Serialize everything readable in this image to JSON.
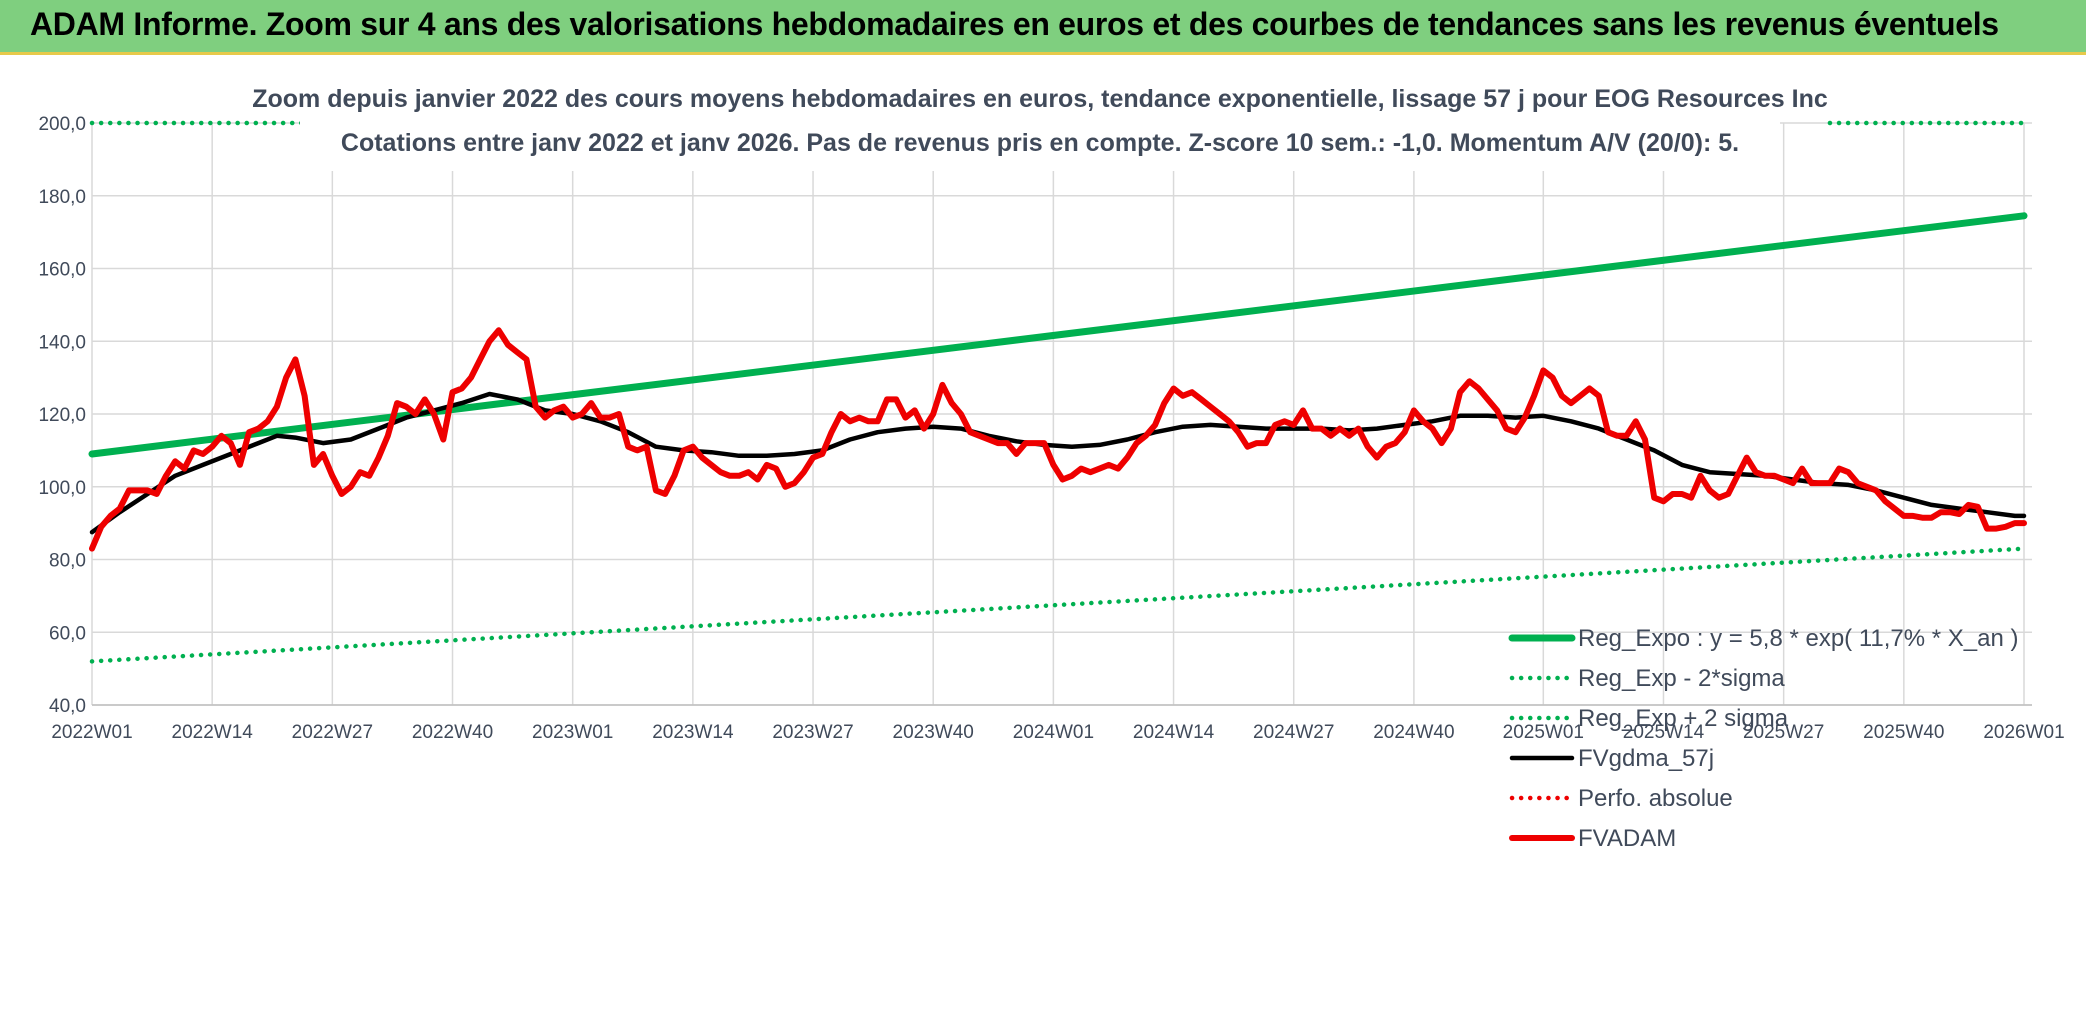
{
  "banner": {
    "title": "ADAM Informe. Zoom sur 4 ans des valorisations hebdomadaires en euros et des courbes de tendances sans les revenus éventuels"
  },
  "colors": {
    "banner_bg": "#7fcf7f",
    "green": "#00b050",
    "black": "#000000",
    "red": "#ee0000",
    "grid": "#d9d9d9",
    "text": "#404a5a"
  },
  "chart_data": {
    "type": "line",
    "title_line1": "Zoom depuis janvier 2022 des cours moyens hebdomadaires en euros, tendance exponentielle, lissage 57 j pour EOG Resources Inc",
    "title_line2": "Cotations entre janv 2022 et janv 2026. Pas de revenus pris en compte. Z-score 10 sem.: -1,0. Momentum A/V (20/0): 5.",
    "xlabel": "",
    "ylabel": "",
    "ylim": [
      40,
      200
    ],
    "yticks": [
      "40,0",
      "60,0",
      "80,0",
      "100,0",
      "120,0",
      "140,0",
      "160,0",
      "180,0",
      "200,0"
    ],
    "x_range_weeks": [
      0,
      209
    ],
    "x_ticks": [
      {
        "week": 0,
        "label": "2022W01"
      },
      {
        "week": 13,
        "label": "2022W14"
      },
      {
        "week": 26,
        "label": "2022W27"
      },
      {
        "week": 39,
        "label": "2022W40"
      },
      {
        "week": 52,
        "label": "2023W01"
      },
      {
        "week": 65,
        "label": "2023W14"
      },
      {
        "week": 78,
        "label": "2023W27"
      },
      {
        "week": 91,
        "label": "2023W40"
      },
      {
        "week": 104,
        "label": "2024W01"
      },
      {
        "week": 117,
        "label": "2024W14"
      },
      {
        "week": 130,
        "label": "2024W27"
      },
      {
        "week": 143,
        "label": "2024W40"
      },
      {
        "week": 157,
        "label": "2025W01"
      },
      {
        "week": 170,
        "label": "2025W14"
      },
      {
        "week": 183,
        "label": "2025W27"
      },
      {
        "week": 196,
        "label": "2025W40"
      },
      {
        "week": 209,
        "label": "2026W01"
      }
    ],
    "grid": true,
    "legend_position": "bottom-right",
    "series": [
      {
        "name": "Reg_Expo : y = 5,8 * exp( 11,7% *  X_an )",
        "style": "solid-thick",
        "color": "#00b050",
        "points": [
          [
            0,
            109.0
          ],
          [
            209,
            174.5
          ]
        ]
      },
      {
        "name": "Reg_Exp - 2*sigma",
        "style": "dotted",
        "color": "#00b050",
        "points": [
          [
            0,
            52.0
          ],
          [
            209,
            83.0
          ]
        ]
      },
      {
        "name": "Reg_Exp + 2 sigma",
        "style": "dotted",
        "color": "#00b050",
        "points": [
          [
            0,
            200.0
          ],
          [
            25,
            200.0
          ]
        ],
        "points_right": [
          [
            188,
            200.0
          ],
          [
            209,
            200.0
          ]
        ]
      },
      {
        "name": "FVgdma_57j",
        "style": "solid",
        "color": "#000000",
        "points": [
          [
            0,
            87.5
          ],
          [
            3,
            93
          ],
          [
            6,
            98
          ],
          [
            9,
            103
          ],
          [
            12,
            106
          ],
          [
            15,
            109
          ],
          [
            18,
            112
          ],
          [
            20,
            114
          ],
          [
            22,
            113.5
          ],
          [
            25,
            112
          ],
          [
            28,
            113
          ],
          [
            31,
            116
          ],
          [
            34,
            119
          ],
          [
            37,
            121
          ],
          [
            40,
            123
          ],
          [
            43,
            125.5
          ],
          [
            46,
            124
          ],
          [
            49,
            121
          ],
          [
            52,
            120
          ],
          [
            55,
            118
          ],
          [
            58,
            115
          ],
          [
            61,
            111
          ],
          [
            64,
            110
          ],
          [
            67,
            109.5
          ],
          [
            70,
            108.5
          ],
          [
            73,
            108.5
          ],
          [
            76,
            109
          ],
          [
            79,
            110
          ],
          [
            82,
            113
          ],
          [
            85,
            115
          ],
          [
            88,
            116
          ],
          [
            91,
            116.5
          ],
          [
            94,
            116
          ],
          [
            97,
            114
          ],
          [
            100,
            112.5
          ],
          [
            103,
            111.5
          ],
          [
            106,
            111
          ],
          [
            109,
            111.5
          ],
          [
            112,
            113
          ],
          [
            115,
            115
          ],
          [
            118,
            116.5
          ],
          [
            121,
            117
          ],
          [
            124,
            116.5
          ],
          [
            127,
            116
          ],
          [
            130,
            116
          ],
          [
            133,
            116
          ],
          [
            136,
            115.5
          ],
          [
            139,
            116
          ],
          [
            142,
            117
          ],
          [
            145,
            118
          ],
          [
            148,
            119.5
          ],
          [
            151,
            119.5
          ],
          [
            154,
            119
          ],
          [
            157,
            119.5
          ],
          [
            160,
            118
          ],
          [
            163,
            116
          ],
          [
            166,
            113
          ],
          [
            169,
            110
          ],
          [
            172,
            106
          ],
          [
            175,
            104
          ],
          [
            178,
            103.5
          ],
          [
            181,
            103
          ],
          [
            184,
            102
          ],
          [
            187,
            101
          ],
          [
            190,
            100.5
          ],
          [
            193,
            99
          ],
          [
            196,
            97
          ],
          [
            199,
            95
          ],
          [
            202,
            94
          ],
          [
            205,
            93
          ],
          [
            208,
            92
          ],
          [
            209,
            92
          ]
        ]
      },
      {
        "name": "Perfo. absolue",
        "style": "dotted",
        "color": "#ee0000",
        "points": []
      },
      {
        "name": "FVADAM",
        "style": "solid-thick",
        "color": "#ee0000",
        "points": [
          [
            0,
            83
          ],
          [
            1,
            89
          ],
          [
            2,
            92
          ],
          [
            3,
            94
          ],
          [
            4,
            99
          ],
          [
            5,
            99
          ],
          [
            6,
            99
          ],
          [
            7,
            98
          ],
          [
            8,
            103
          ],
          [
            9,
            107
          ],
          [
            10,
            105
          ],
          [
            11,
            110
          ],
          [
            12,
            109
          ],
          [
            13,
            111
          ],
          [
            14,
            114
          ],
          [
            15,
            112
          ],
          [
            16,
            106
          ],
          [
            17,
            115
          ],
          [
            18,
            116
          ],
          [
            19,
            118
          ],
          [
            20,
            122
          ],
          [
            21,
            130
          ],
          [
            22,
            135
          ],
          [
            23,
            125
          ],
          [
            24,
            106
          ],
          [
            25,
            109
          ],
          [
            26,
            103
          ],
          [
            27,
            98
          ],
          [
            28,
            100
          ],
          [
            29,
            104
          ],
          [
            30,
            103
          ],
          [
            31,
            108
          ],
          [
            32,
            114
          ],
          [
            33,
            123
          ],
          [
            34,
            122
          ],
          [
            35,
            120
          ],
          [
            36,
            124
          ],
          [
            37,
            120
          ],
          [
            38,
            113
          ],
          [
            39,
            126
          ],
          [
            40,
            127
          ],
          [
            41,
            130
          ],
          [
            42,
            135
          ],
          [
            43,
            140
          ],
          [
            44,
            143
          ],
          [
            45,
            139
          ],
          [
            46,
            137
          ],
          [
            47,
            135
          ],
          [
            48,
            122
          ],
          [
            49,
            119
          ],
          [
            50,
            121
          ],
          [
            51,
            122
          ],
          [
            52,
            119
          ],
          [
            53,
            120
          ],
          [
            54,
            123
          ],
          [
            55,
            119
          ],
          [
            56,
            119
          ],
          [
            57,
            120
          ],
          [
            58,
            111
          ],
          [
            59,
            110
          ],
          [
            60,
            111
          ],
          [
            61,
            99
          ],
          [
            62,
            98
          ],
          [
            63,
            103
          ],
          [
            64,
            110
          ],
          [
            65,
            111
          ],
          [
            66,
            108
          ],
          [
            67,
            106
          ],
          [
            68,
            104
          ],
          [
            69,
            103
          ],
          [
            70,
            103
          ],
          [
            71,
            104
          ],
          [
            72,
            102
          ],
          [
            73,
            106
          ],
          [
            74,
            105
          ],
          [
            75,
            100
          ],
          [
            76,
            101
          ],
          [
            77,
            104
          ],
          [
            78,
            108
          ],
          [
            79,
            109
          ],
          [
            80,
            115
          ],
          [
            81,
            120
          ],
          [
            82,
            118
          ],
          [
            83,
            119
          ],
          [
            84,
            118
          ],
          [
            85,
            118
          ],
          [
            86,
            124
          ],
          [
            87,
            124
          ],
          [
            88,
            119
          ],
          [
            89,
            121
          ],
          [
            90,
            116
          ],
          [
            91,
            120
          ],
          [
            92,
            128
          ],
          [
            93,
            123
          ],
          [
            94,
            120
          ],
          [
            95,
            115
          ],
          [
            96,
            114
          ],
          [
            97,
            113
          ],
          [
            98,
            112
          ],
          [
            99,
            112
          ],
          [
            100,
            109
          ],
          [
            101,
            112
          ],
          [
            102,
            112
          ],
          [
            103,
            112
          ],
          [
            104,
            106
          ],
          [
            105,
            102
          ],
          [
            106,
            103
          ],
          [
            107,
            105
          ],
          [
            108,
            104
          ],
          [
            109,
            105
          ],
          [
            110,
            106
          ],
          [
            111,
            105
          ],
          [
            112,
            108
          ],
          [
            113,
            112
          ],
          [
            114,
            114
          ],
          [
            115,
            117
          ],
          [
            116,
            123
          ],
          [
            117,
            127
          ],
          [
            118,
            125
          ],
          [
            119,
            126
          ],
          [
            120,
            124
          ],
          [
            121,
            122
          ],
          [
            122,
            120
          ],
          [
            123,
            118
          ],
          [
            124,
            115
          ],
          [
            125,
            111
          ],
          [
            126,
            112
          ],
          [
            127,
            112
          ],
          [
            128,
            117
          ],
          [
            129,
            118
          ],
          [
            130,
            117
          ],
          [
            131,
            121
          ],
          [
            132,
            116
          ],
          [
            133,
            116
          ],
          [
            134,
            114
          ],
          [
            135,
            116
          ],
          [
            136,
            114
          ],
          [
            137,
            116
          ],
          [
            138,
            111
          ],
          [
            139,
            108
          ],
          [
            140,
            111
          ],
          [
            141,
            112
          ],
          [
            142,
            115
          ],
          [
            143,
            121
          ],
          [
            144,
            118
          ],
          [
            145,
            116
          ],
          [
            146,
            112
          ],
          [
            147,
            116
          ],
          [
            148,
            126
          ],
          [
            149,
            129
          ],
          [
            150,
            127
          ],
          [
            151,
            124
          ],
          [
            152,
            121
          ],
          [
            153,
            116
          ],
          [
            154,
            115
          ],
          [
            155,
            119
          ],
          [
            156,
            125
          ],
          [
            157,
            132
          ],
          [
            158,
            130
          ],
          [
            159,
            125
          ],
          [
            160,
            123
          ],
          [
            161,
            125
          ],
          [
            162,
            127
          ],
          [
            163,
            125
          ],
          [
            164,
            115
          ],
          [
            165,
            114
          ],
          [
            166,
            114
          ],
          [
            167,
            118
          ],
          [
            168,
            113
          ],
          [
            169,
            97
          ],
          [
            170,
            96
          ],
          [
            171,
            98
          ],
          [
            172,
            98
          ],
          [
            173,
            97
          ],
          [
            174,
            103
          ],
          [
            175,
            99
          ],
          [
            176,
            97
          ],
          [
            177,
            98
          ],
          [
            178,
            103
          ],
          [
            179,
            108
          ],
          [
            180,
            104
          ],
          [
            181,
            103
          ],
          [
            182,
            103
          ],
          [
            183,
            102
          ],
          [
            184,
            101
          ],
          [
            185,
            105
          ],
          [
            186,
            101
          ],
          [
            187,
            101
          ],
          [
            188,
            101
          ],
          [
            189,
            105
          ],
          [
            190,
            104
          ],
          [
            191,
            101
          ],
          [
            192,
            100
          ],
          [
            193,
            99
          ],
          [
            194,
            96
          ],
          [
            195,
            94
          ],
          [
            196,
            92
          ],
          [
            197,
            92
          ],
          [
            198,
            91.5
          ],
          [
            199,
            91.5
          ],
          [
            200,
            93
          ],
          [
            201,
            93
          ],
          [
            202,
            92.5
          ],
          [
            203,
            95
          ],
          [
            204,
            94.5
          ],
          [
            205,
            88.5
          ],
          [
            206,
            88.5
          ],
          [
            207,
            89
          ],
          [
            208,
            90
          ],
          [
            209,
            90
          ]
        ]
      }
    ]
  }
}
